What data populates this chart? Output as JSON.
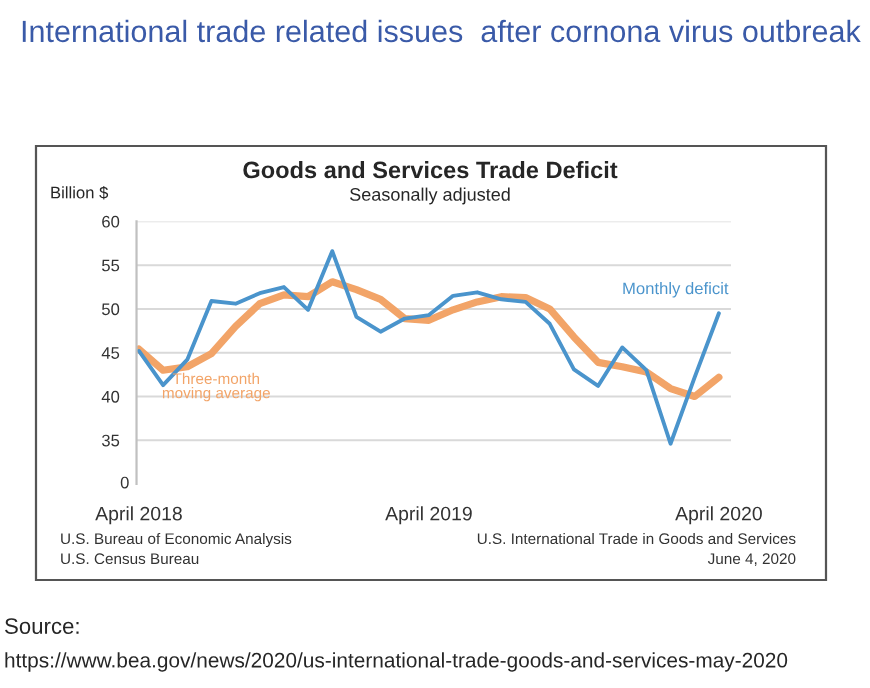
{
  "chart_data": {
    "type": "line",
    "title": "Goods and Services Trade Deficit",
    "subtitle": "Seasonally adjusted",
    "ylabel": "Billion $",
    "categories": [
      "April 2018",
      null,
      null,
      null,
      null,
      null,
      null,
      null,
      null,
      null,
      null,
      null,
      "April 2019",
      null,
      null,
      null,
      null,
      null,
      null,
      null,
      null,
      null,
      null,
      null,
      "April 2020"
    ],
    "series": [
      {
        "name": "Three-month moving average",
        "color": "#f2a468",
        "values": [
          45.4,
          43.0,
          43.4,
          44.9,
          48.0,
          50.6,
          51.6,
          51.4,
          53.1,
          52.2,
          51.1,
          48.9,
          48.7,
          49.9,
          50.8,
          51.4,
          51.3,
          50.0,
          46.8,
          43.9,
          43.4,
          42.8,
          40.9,
          40.0,
          42.2
        ]
      },
      {
        "name": "Monthly deficit",
        "color": "#4a94cc",
        "values": [
          45.2,
          41.3,
          44.2,
          50.9,
          50.6,
          51.8,
          52.5,
          49.9,
          56.6,
          49.1,
          47.4,
          48.9,
          49.3,
          51.5,
          51.9,
          51.1,
          50.8,
          48.3,
          43.1,
          41.2,
          45.6,
          43.0,
          34.6,
          42.2,
          49.5
        ]
      }
    ],
    "ylim": [
      30,
      60
    ],
    "yticks": [
      35,
      40,
      45,
      50,
      55,
      60
    ],
    "grid": "y",
    "legend": false,
    "marker": "none",
    "line_style": "solid",
    "annotations": [
      "International trade related issues  after cornona virus outbreak",
      "U.S. Bureau of Economic Analysis",
      "U.S. Census Bureau",
      "U.S. International Trade in Goods and Services",
      "June 4, 2020",
      "Source:",
      "0",
      "https://www.bea.gov/news/2020/us-international-trade-goods-and-services-may-2020"
    ]
  }
}
